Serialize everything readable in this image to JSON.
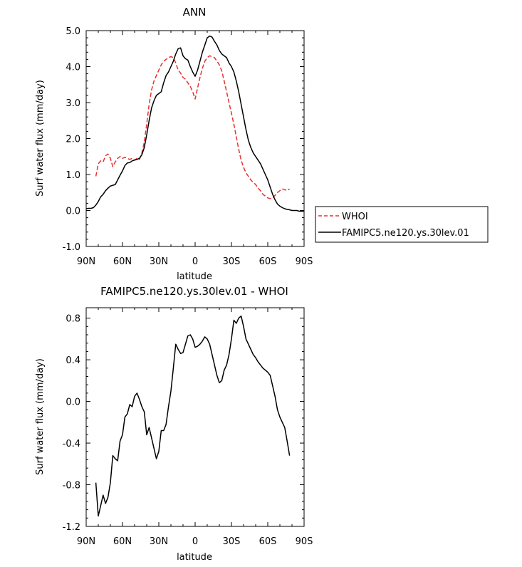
{
  "chart_data": [
    {
      "type": "line",
      "title": "ANN",
      "xlabel": "latitude",
      "ylabel": "Surf water flux (mm/day)",
      "xlim": [
        90,
        -90
      ],
      "ylim": [
        -1.0,
        5.0
      ],
      "xticks": [
        90,
        60,
        30,
        0,
        -30,
        -60,
        -90
      ],
      "xtick_labels": [
        "90N",
        "60N",
        "30N",
        "0",
        "30S",
        "60S",
        "90S"
      ],
      "yticks": [
        -1,
        0,
        1,
        2,
        3,
        4,
        5
      ],
      "ytick_labels": [
        "-1.0",
        "0.0",
        "1.0",
        "2.0",
        "3.0",
        "4.0",
        "5.0"
      ],
      "legend": "right-bottom",
      "series": [
        {
          "name": "WHOI",
          "color": "#e8302e",
          "dash": true,
          "x": [
            82,
            80,
            78,
            76,
            74,
            72,
            70,
            68,
            66,
            64,
            62,
            60,
            58,
            56,
            54,
            52,
            50,
            48,
            46,
            44,
            42,
            40,
            38,
            36,
            34,
            32,
            30,
            28,
            26,
            24,
            22,
            20,
            18,
            16,
            14,
            12,
            10,
            8,
            6,
            4,
            2,
            0,
            -2,
            -4,
            -6,
            -8,
            -10,
            -12,
            -14,
            -16,
            -18,
            -20,
            -22,
            -24,
            -26,
            -28,
            -30,
            -32,
            -34,
            -36,
            -38,
            -40,
            -42,
            -44,
            -46,
            -48,
            -50,
            -52,
            -54,
            -56,
            -58,
            -60,
            -62,
            -64,
            -66,
            -68,
            -70,
            -72,
            -74,
            -76,
            -78
          ],
          "values": [
            0.95,
            1.3,
            1.38,
            1.35,
            1.52,
            1.57,
            1.45,
            1.22,
            1.35,
            1.45,
            1.5,
            1.45,
            1.48,
            1.45,
            1.42,
            1.45,
            1.4,
            1.45,
            1.42,
            1.6,
            1.9,
            2.4,
            2.95,
            3.35,
            3.6,
            3.75,
            3.9,
            4.05,
            4.15,
            4.2,
            4.25,
            4.28,
            4.25,
            4.1,
            3.9,
            3.82,
            3.7,
            3.65,
            3.55,
            3.45,
            3.3,
            3.1,
            3.4,
            3.7,
            3.95,
            4.15,
            4.25,
            4.3,
            4.28,
            4.25,
            4.15,
            4.05,
            3.88,
            3.6,
            3.3,
            3.0,
            2.7,
            2.4,
            2.05,
            1.7,
            1.4,
            1.2,
            1.05,
            0.95,
            0.85,
            0.78,
            0.72,
            0.62,
            0.55,
            0.45,
            0.4,
            0.35,
            0.33,
            0.35,
            0.42,
            0.5,
            0.55,
            0.6,
            0.58,
            0.55,
            0.6
          ]
        },
        {
          "name": "FAMIPC5.ne120.ys.30lev.01",
          "color": "#000000",
          "dash": false,
          "x": [
            90,
            88,
            86,
            84,
            82,
            80,
            78,
            76,
            74,
            72,
            70,
            68,
            66,
            64,
            62,
            60,
            58,
            56,
            54,
            52,
            50,
            48,
            46,
            44,
            42,
            40,
            38,
            36,
            34,
            32,
            30,
            28,
            26,
            24,
            22,
            20,
            18,
            16,
            14,
            12,
            10,
            8,
            6,
            4,
            2,
            0,
            -2,
            -4,
            -6,
            -8,
            -10,
            -12,
            -14,
            -16,
            -18,
            -20,
            -22,
            -24,
            -26,
            -28,
            -30,
            -32,
            -34,
            -36,
            -38,
            -40,
            -42,
            -44,
            -46,
            -48,
            -50,
            -52,
            -54,
            -56,
            -58,
            -60,
            -62,
            -64,
            -66,
            -68,
            -70,
            -72,
            -74,
            -76,
            -78,
            -80,
            -82,
            -84,
            -86,
            -88,
            -90
          ],
          "values": [
            0.05,
            0.06,
            0.06,
            0.08,
            0.15,
            0.25,
            0.38,
            0.45,
            0.55,
            0.62,
            0.68,
            0.7,
            0.72,
            0.85,
            0.98,
            1.1,
            1.25,
            1.32,
            1.33,
            1.38,
            1.4,
            1.42,
            1.45,
            1.55,
            1.75,
            2.1,
            2.5,
            2.85,
            3.05,
            3.2,
            3.25,
            3.3,
            3.55,
            3.75,
            3.85,
            4.0,
            4.15,
            4.35,
            4.5,
            4.52,
            4.3,
            4.22,
            4.18,
            4.0,
            3.85,
            3.73,
            3.9,
            4.15,
            4.4,
            4.6,
            4.8,
            4.85,
            4.82,
            4.7,
            4.6,
            4.45,
            4.35,
            4.3,
            4.25,
            4.1,
            4.0,
            3.85,
            3.6,
            3.3,
            2.95,
            2.6,
            2.25,
            1.95,
            1.75,
            1.6,
            1.5,
            1.4,
            1.3,
            1.15,
            1.0,
            0.85,
            0.65,
            0.45,
            0.3,
            0.18,
            0.12,
            0.08,
            0.05,
            0.03,
            0.02,
            0.0,
            0.0,
            0.0,
            -0.02,
            -0.02,
            -0.02
          ]
        }
      ]
    },
    {
      "type": "line",
      "title": "FAMIPC5.ne120.ys.30lev.01 - WHOI",
      "xlabel": "latitude",
      "ylabel": "Surf water flux (mm/day)",
      "xlim": [
        90,
        -90
      ],
      "ylim": [
        -1.2,
        0.9
      ],
      "xticks": [
        90,
        60,
        30,
        0,
        -30,
        -60,
        -90
      ],
      "xtick_labels": [
        "90N",
        "60N",
        "30N",
        "0",
        "30S",
        "60S",
        "90S"
      ],
      "yticks": [
        -1.2,
        -0.8,
        -0.4,
        0.0,
        0.4,
        0.8
      ],
      "ytick_labels": [
        "-1.2",
        "-0.8",
        "-0.4",
        "0.0",
        "0.4",
        "0.8"
      ],
      "series": [
        {
          "color": "#000000",
          "dash": false,
          "x": [
            82,
            80,
            78,
            76,
            74,
            72,
            70,
            68,
            66,
            64,
            62,
            60,
            58,
            56,
            54,
            52,
            50,
            48,
            46,
            44,
            42,
            40,
            38,
            36,
            34,
            32,
            30,
            28,
            26,
            24,
            22,
            20,
            18,
            16,
            14,
            12,
            10,
            8,
            6,
            4,
            2,
            0,
            -2,
            -4,
            -6,
            -8,
            -10,
            -12,
            -14,
            -16,
            -18,
            -20,
            -22,
            -24,
            -26,
            -28,
            -30,
            -32,
            -34,
            -36,
            -38,
            -40,
            -42,
            -44,
            -46,
            -48,
            -50,
            -52,
            -54,
            -56,
            -58,
            -60,
            -62,
            -64,
            -66,
            -68,
            -70,
            -72,
            -74,
            -76,
            -78
          ],
          "values": [
            -0.78,
            -1.1,
            -1.0,
            -0.9,
            -0.98,
            -0.92,
            -0.78,
            -0.52,
            -0.55,
            -0.57,
            -0.38,
            -0.32,
            -0.15,
            -0.12,
            -0.03,
            -0.05,
            0.05,
            0.08,
            0.02,
            -0.05,
            -0.1,
            -0.32,
            -0.25,
            -0.35,
            -0.45,
            -0.55,
            -0.48,
            -0.28,
            -0.28,
            -0.22,
            -0.05,
            0.1,
            0.32,
            0.55,
            0.5,
            0.46,
            0.47,
            0.55,
            0.63,
            0.64,
            0.6,
            0.52,
            0.53,
            0.55,
            0.58,
            0.62,
            0.6,
            0.55,
            0.45,
            0.35,
            0.25,
            0.18,
            0.2,
            0.3,
            0.35,
            0.45,
            0.6,
            0.78,
            0.75,
            0.8,
            0.82,
            0.72,
            0.6,
            0.55,
            0.5,
            0.45,
            0.42,
            0.38,
            0.35,
            0.32,
            0.3,
            0.28,
            0.25,
            0.15,
            0.05,
            -0.08,
            -0.15,
            -0.2,
            -0.25,
            -0.38,
            -0.52
          ]
        }
      ]
    }
  ]
}
